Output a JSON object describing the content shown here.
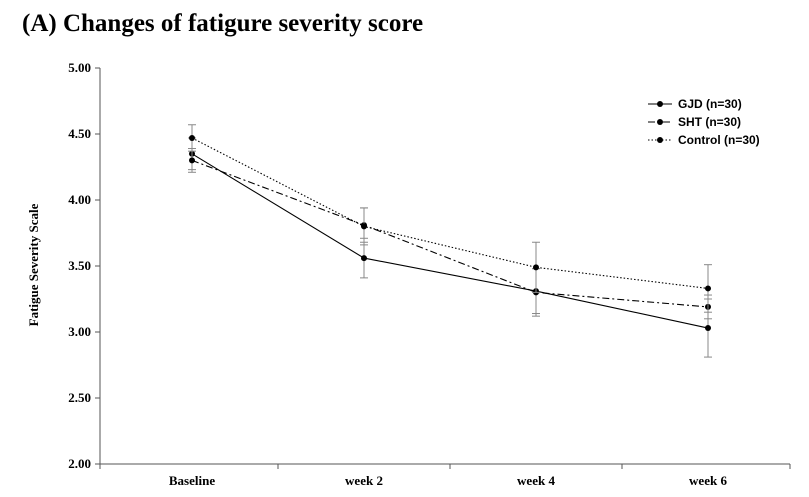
{
  "chart_data": {
    "type": "line",
    "title": "(A) Changes of fatigure severity score",
    "xlabel": "",
    "ylabel": "Fatigue Severity Scale",
    "categories": [
      "Baseline",
      "week 2",
      "week 4",
      "week 6"
    ],
    "ylim": [
      2.0,
      5.0
    ],
    "yticks": [
      "2.00",
      "2.50",
      "3.00",
      "3.50",
      "4.00",
      "4.50",
      "5.00"
    ],
    "grid": false,
    "legend": "top-right",
    "series": [
      {
        "name": "GJD (n=30)",
        "values": [
          4.35,
          3.56,
          3.31,
          3.03
        ],
        "err": [
          0.12,
          0.15,
          0.17,
          0.22
        ],
        "style": "solid",
        "color": "#000000"
      },
      {
        "name": "SHT (n=30)",
        "values": [
          4.3,
          3.81,
          3.3,
          3.19
        ],
        "err": [
          0.09,
          0.13,
          0.18,
          0.09
        ],
        "style": "dashdot",
        "color": "#000000"
      },
      {
        "name": "Control (n=30)",
        "values": [
          4.47,
          3.8,
          3.49,
          3.33
        ],
        "err": [
          0.1,
          0.14,
          0.19,
          0.18
        ],
        "style": "dotted",
        "color": "#000000"
      }
    ]
  }
}
